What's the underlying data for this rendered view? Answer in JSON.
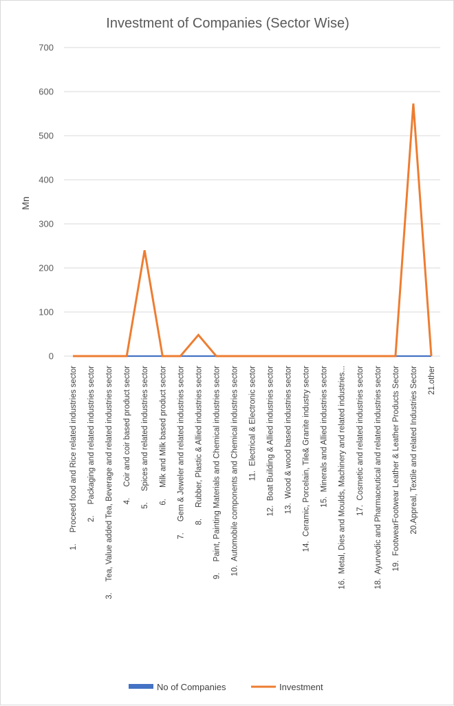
{
  "chart_data": {
    "type": "line",
    "title": "Investment of Companies (Sector Wise)",
    "ylabel": "Mn",
    "xlabel": "",
    "ylim": [
      0,
      700
    ],
    "yticks": [
      "0",
      "100",
      "200",
      "300",
      "400",
      "500",
      "600",
      "700"
    ],
    "ytick_values": [
      0,
      100,
      200,
      300,
      400,
      500,
      600,
      700
    ],
    "grid": true,
    "legend_position": "bottom",
    "categories": [
      "1.     Proceed food and Rice related industries sector",
      "2.     Packaging and related industries sector",
      "3.     Tea, Value added Tea, Beverage and related industries sector",
      "4.     Coir and coir based product sector",
      "5.     Spices and related industries sector",
      "6.     Milk and Milk based product sector",
      "7.     Gem & Jeweler and related industries sector",
      "8.     Rubber, Plastic & Allied industries sector",
      "9.     Paint, Painting Materials and Chemical industries sector",
      "10.  Automobile components and Chemical industries sector",
      "11.  Electrical & Electronic sector",
      "12.  Boat Building & Allied industries sector",
      "13.  Wood & wood based industries sector",
      "14.  Ceramic, Porcelain, Tile& Granite industry sector",
      "15.  Minerals and Allied industries sector",
      "16.  Metal, Dies and Moulds, Machinery and related industries...",
      "17.  Cosmetic and related industries sector",
      "18.  Ayurvedic and Pharmaceutical and related industries sector",
      "19.  FootwearFootwear Leather & Leather Products Sector",
      "20.Appreal, Textile and related Industries Sector",
      "21.other"
    ],
    "series": [
      {
        "name": "No of Companies",
        "color": "#4472c4",
        "values": [
          0,
          0,
          0,
          0,
          0,
          0,
          0,
          0,
          0,
          0,
          0,
          0,
          0,
          0,
          0,
          0,
          0,
          0,
          0,
          0,
          0
        ]
      },
      {
        "name": "Investment",
        "color": "#ed7d31",
        "values": [
          0,
          0,
          0,
          0,
          240,
          0,
          0,
          48,
          0,
          0,
          0,
          0,
          0,
          0,
          0,
          0,
          0,
          0,
          0,
          573,
          0
        ]
      }
    ]
  }
}
